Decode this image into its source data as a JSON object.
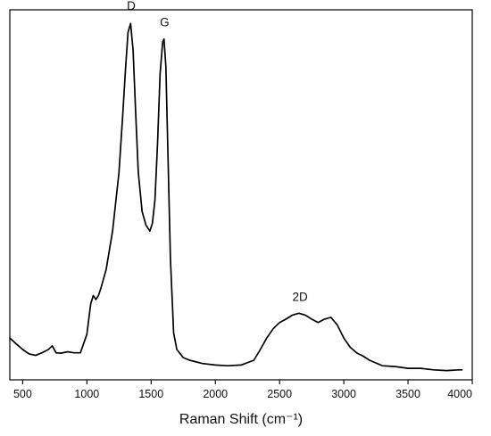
{
  "chart_data": {
    "type": "line",
    "title": "",
    "xlabel": "Raman Shift (cm⁻¹)",
    "ylabel": "",
    "xlim": [
      400,
      4000
    ],
    "ylim": [
      0,
      100
    ],
    "xticks": [
      500,
      1000,
      1500,
      2000,
      2500,
      3000,
      3500,
      4000
    ],
    "xtick_labels": [
      "500",
      "1000",
      "1500",
      "2000",
      "2500",
      "3000",
      "3500",
      "4000"
    ],
    "yticks_shown": false,
    "grid": false,
    "legend": "none",
    "line_color": "#000000",
    "series": [
      {
        "x": [
          400,
          450,
          500,
          550,
          600,
          650,
          700,
          730,
          760,
          800,
          850,
          900,
          950,
          1000,
          1030,
          1050,
          1070,
          1090,
          1110,
          1150,
          1200,
          1250,
          1280,
          1300,
          1320,
          1340,
          1360,
          1380,
          1400,
          1430,
          1460,
          1490,
          1510,
          1530,
          1550,
          1570,
          1590,
          1600,
          1615,
          1630,
          1650,
          1675,
          1700,
          1750,
          1800,
          1900,
          2000,
          2100,
          2200,
          2300,
          2350,
          2400,
          2450,
          2500,
          2550,
          2600,
          2650,
          2700,
          2750,
          2800,
          2850,
          2900,
          2950,
          3000,
          3050,
          3100,
          3150,
          3200,
          3300,
          3400,
          3500,
          3600,
          3700,
          3800,
          3900,
          3920
        ],
        "y": [
          11.3,
          9.7,
          8.2,
          7.0,
          6.6,
          7.3,
          8.2,
          9.2,
          7.3,
          7.2,
          7.6,
          7.3,
          7.3,
          12.3,
          20.5,
          22.8,
          21.7,
          22.8,
          24.9,
          29.8,
          40.2,
          56.1,
          72.0,
          83.6,
          93.9,
          96.3,
          89.0,
          72.0,
          56.1,
          45.5,
          41.8,
          40.2,
          42.3,
          48.7,
          64.0,
          82.5,
          91.3,
          92.1,
          84.7,
          62.2,
          32.8,
          12.7,
          8.2,
          6.0,
          5.3,
          4.4,
          4.0,
          3.8,
          4.0,
          5.3,
          8.2,
          11.3,
          13.8,
          15.5,
          16.4,
          17.5,
          18.0,
          17.5,
          16.4,
          15.5,
          16.4,
          16.9,
          14.8,
          11.3,
          8.8,
          7.3,
          6.4,
          5.3,
          3.8,
          3.6,
          3.1,
          3.1,
          2.7,
          2.5,
          2.7,
          2.7
        ]
      }
    ],
    "annotations": [
      {
        "text": "D",
        "x": 1345,
        "y": 100
      },
      {
        "text": "G",
        "x": 1605,
        "y": 95.5
      },
      {
        "text": "2D",
        "x": 2660,
        "y": 21.3
      }
    ]
  }
}
